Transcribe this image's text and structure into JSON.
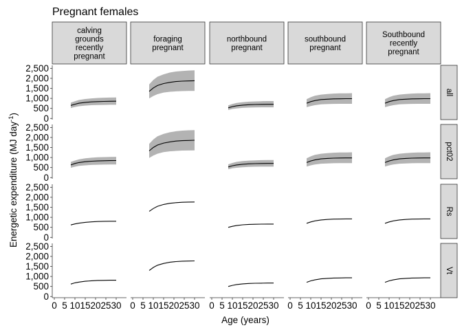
{
  "chart_data": {
    "type": "line",
    "title": "Pregnant females",
    "xlabel": "Age (years)",
    "ylabel": "Energetic expenditure (MJ day",
    "ylabel_superscript": "-1",
    "ylabel_suffix": ")",
    "xlim": [
      -1,
      35
    ],
    "ylim": [
      -60,
      2650
    ],
    "x_ticks": [
      0,
      5,
      10,
      15,
      20,
      25,
      30
    ],
    "x_tick_labels": [
      "0",
      "5",
      "10",
      "15",
      "20",
      "25",
      "30"
    ],
    "y_ticks": [
      0,
      500,
      1000,
      1500,
      2000,
      2500
    ],
    "y_tick_labels": [
      "0",
      "500",
      "1,000",
      "1,500",
      "2,000",
      "2,500"
    ],
    "columns": [
      {
        "id": "calving",
        "label_lines": [
          "calving",
          "grounds",
          "recently",
          "pregnant"
        ]
      },
      {
        "id": "foraging",
        "label_lines": [
          "foraging",
          "pregnant"
        ]
      },
      {
        "id": "northbound",
        "label_lines": [
          "northbound",
          "pregnant"
        ]
      },
      {
        "id": "southbound",
        "label_lines": [
          "southbound",
          "pregnant"
        ]
      },
      {
        "id": "southbound_recent",
        "label_lines": [
          "Southbound",
          "recently",
          "pregnant"
        ]
      }
    ],
    "rows": [
      {
        "id": "all",
        "label": "all",
        "band": true
      },
      {
        "id": "pct02",
        "label": "pct02",
        "band": true
      },
      {
        "id": "Rs",
        "label": "Rs",
        "band": false
      },
      {
        "id": "Vt",
        "label": "Vt",
        "band": false
      }
    ],
    "series": [
      {
        "col": "calving",
        "row": "all",
        "x": [
          8,
          10,
          12,
          15,
          18,
          21,
          24,
          27,
          30
        ],
        "y": [
          650,
          710,
          760,
          800,
          825,
          840,
          850,
          855,
          860
        ],
        "lower": [
          520,
          570,
          610,
          640,
          660,
          670,
          675,
          680,
          680
        ],
        "upper": [
          790,
          860,
          920,
          970,
          1000,
          1020,
          1035,
          1040,
          1045
        ]
      },
      {
        "col": "foraging",
        "row": "all",
        "x": [
          8,
          10,
          12,
          15,
          18,
          21,
          24,
          27,
          30
        ],
        "y": [
          1350,
          1520,
          1640,
          1740,
          1800,
          1840,
          1860,
          1870,
          1880
        ],
        "lower": [
          1000,
          1120,
          1210,
          1290,
          1330,
          1350,
          1365,
          1370,
          1375
        ],
        "upper": [
          1700,
          1920,
          2080,
          2200,
          2290,
          2340,
          2370,
          2390,
          2400
        ]
      },
      {
        "col": "northbound",
        "row": "all",
        "x": [
          8,
          10,
          12,
          15,
          18,
          21,
          24,
          27,
          30
        ],
        "y": [
          530,
          590,
          630,
          665,
          685,
          695,
          700,
          705,
          705
        ],
        "lower": [
          420,
          470,
          500,
          525,
          540,
          550,
          555,
          555,
          555
        ],
        "upper": [
          650,
          720,
          770,
          810,
          835,
          850,
          860,
          865,
          865
        ]
      },
      {
        "col": "southbound",
        "row": "all",
        "x": [
          8,
          10,
          12,
          15,
          18,
          21,
          24,
          27,
          30
        ],
        "y": [
          760,
          840,
          890,
          940,
          960,
          975,
          980,
          985,
          985
        ],
        "lower": [
          560,
          620,
          660,
          700,
          715,
          725,
          730,
          730,
          730
        ],
        "upper": [
          960,
          1060,
          1130,
          1190,
          1220,
          1240,
          1250,
          1255,
          1260
        ]
      },
      {
        "col": "southbound_recent",
        "row": "all",
        "x": [
          8,
          10,
          12,
          15,
          18,
          21,
          24,
          27,
          30
        ],
        "y": [
          760,
          840,
          890,
          940,
          960,
          975,
          980,
          985,
          985
        ],
        "lower": [
          560,
          620,
          660,
          700,
          715,
          725,
          730,
          730,
          730
        ],
        "upper": [
          960,
          1060,
          1130,
          1190,
          1220,
          1240,
          1250,
          1255,
          1260
        ]
      },
      {
        "col": "calving",
        "row": "pct02",
        "x": [
          8,
          10,
          12,
          15,
          18,
          21,
          24,
          27,
          30
        ],
        "y": [
          630,
          700,
          750,
          790,
          815,
          830,
          840,
          845,
          850
        ],
        "lower": [
          490,
          540,
          580,
          610,
          630,
          640,
          645,
          650,
          650
        ],
        "upper": [
          780,
          850,
          910,
          960,
          990,
          1010,
          1020,
          1030,
          1035
        ]
      },
      {
        "col": "foraging",
        "row": "pct02",
        "x": [
          8,
          10,
          12,
          15,
          18,
          21,
          24,
          27,
          30
        ],
        "y": [
          1330,
          1500,
          1620,
          1720,
          1780,
          1820,
          1840,
          1850,
          1860
        ],
        "lower": [
          980,
          1100,
          1190,
          1270,
          1310,
          1330,
          1345,
          1350,
          1355
        ],
        "upper": [
          1680,
          1900,
          2060,
          2180,
          2260,
          2310,
          2340,
          2360,
          2370
        ]
      },
      {
        "col": "northbound",
        "row": "pct02",
        "x": [
          8,
          10,
          12,
          15,
          18,
          21,
          24,
          27,
          30
        ],
        "y": [
          530,
          590,
          630,
          665,
          685,
          695,
          700,
          705,
          705
        ],
        "lower": [
          410,
          460,
          490,
          515,
          530,
          540,
          545,
          545,
          545
        ],
        "upper": [
          660,
          730,
          780,
          820,
          845,
          860,
          870,
          875,
          875
        ]
      },
      {
        "col": "southbound",
        "row": "pct02",
        "x": [
          8,
          10,
          12,
          15,
          18,
          21,
          24,
          27,
          30
        ],
        "y": [
          750,
          830,
          880,
          930,
          955,
          970,
          975,
          980,
          980
        ],
        "lower": [
          550,
          610,
          650,
          690,
          705,
          715,
          720,
          720,
          720
        ],
        "upper": [
          960,
          1060,
          1130,
          1190,
          1220,
          1240,
          1250,
          1255,
          1260
        ]
      },
      {
        "col": "southbound_recent",
        "row": "pct02",
        "x": [
          8,
          10,
          12,
          15,
          18,
          21,
          24,
          27,
          30
        ],
        "y": [
          750,
          830,
          880,
          930,
          955,
          970,
          975,
          980,
          980
        ],
        "lower": [
          550,
          610,
          650,
          690,
          705,
          715,
          720,
          720,
          720
        ],
        "upper": [
          960,
          1060,
          1130,
          1190,
          1220,
          1240,
          1250,
          1255,
          1260
        ]
      },
      {
        "col": "calving",
        "row": "Rs",
        "x": [
          8,
          10,
          12,
          15,
          18,
          21,
          24,
          27,
          30
        ],
        "y": [
          620,
          670,
          710,
          750,
          775,
          790,
          800,
          805,
          805
        ]
      },
      {
        "col": "foraging",
        "row": "Rs",
        "x": [
          8,
          10,
          12,
          15,
          18,
          21,
          24,
          27,
          30
        ],
        "y": [
          1300,
          1440,
          1550,
          1640,
          1700,
          1730,
          1750,
          1760,
          1765
        ]
      },
      {
        "col": "northbound",
        "row": "Rs",
        "x": [
          8,
          10,
          12,
          15,
          18,
          21,
          24,
          27,
          30
        ],
        "y": [
          500,
          550,
          590,
          625,
          645,
          655,
          660,
          665,
          665
        ]
      },
      {
        "col": "southbound",
        "row": "Rs",
        "x": [
          8,
          10,
          12,
          15,
          18,
          21,
          24,
          27,
          30
        ],
        "y": [
          700,
          770,
          820,
          870,
          895,
          910,
          915,
          920,
          920
        ]
      },
      {
        "col": "southbound_recent",
        "row": "Rs",
        "x": [
          8,
          10,
          12,
          15,
          18,
          21,
          24,
          27,
          30
        ],
        "y": [
          700,
          770,
          820,
          870,
          895,
          910,
          915,
          920,
          920
        ]
      },
      {
        "col": "calving",
        "row": "Vt",
        "x": [
          8,
          10,
          12,
          15,
          18,
          21,
          24,
          27,
          30
        ],
        "y": [
          620,
          680,
          720,
          760,
          785,
          800,
          805,
          810,
          810
        ]
      },
      {
        "col": "foraging",
        "row": "Vt",
        "x": [
          8,
          10,
          12,
          15,
          18,
          21,
          24,
          27,
          30
        ],
        "y": [
          1300,
          1450,
          1560,
          1650,
          1710,
          1740,
          1760,
          1770,
          1775
        ]
      },
      {
        "col": "northbound",
        "row": "Vt",
        "x": [
          8,
          10,
          12,
          15,
          18,
          21,
          24,
          27,
          30
        ],
        "y": [
          500,
          555,
          595,
          630,
          650,
          660,
          665,
          670,
          670
        ]
      },
      {
        "col": "southbound",
        "row": "Vt",
        "x": [
          8,
          10,
          12,
          15,
          18,
          21,
          24,
          27,
          30
        ],
        "y": [
          710,
          780,
          830,
          880,
          905,
          920,
          925,
          930,
          930
        ]
      },
      {
        "col": "southbound_recent",
        "row": "Vt",
        "x": [
          8,
          10,
          12,
          15,
          18,
          21,
          24,
          27,
          30
        ],
        "y": [
          710,
          780,
          830,
          880,
          905,
          920,
          925,
          930,
          930
        ]
      }
    ]
  }
}
